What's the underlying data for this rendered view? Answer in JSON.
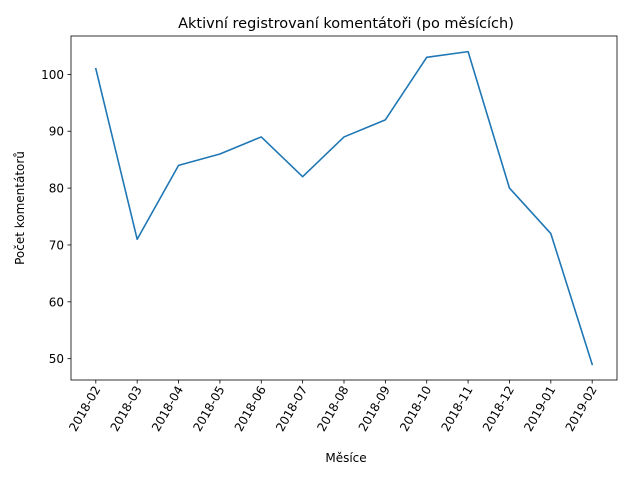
{
  "chart_data": {
    "type": "line",
    "title": "Aktivní registrovaní komentátoři (po měsících)",
    "xlabel": "Měsíce",
    "ylabel": "Počet komentátorů",
    "categories": [
      "2018-02",
      "2018-03",
      "2018-04",
      "2018-05",
      "2018-06",
      "2018-07",
      "2018-08",
      "2018-09",
      "2018-10",
      "2018-11",
      "2018-12",
      "2019-01",
      "2019-02"
    ],
    "series": [
      {
        "values": [
          101,
          71,
          84,
          86,
          89,
          82,
          89,
          92,
          103,
          104,
          80,
          72,
          49
        ]
      }
    ],
    "ylim": [
      46.25,
      106.75
    ],
    "yticks": [
      50,
      60,
      70,
      80,
      90,
      100
    ],
    "grid": false,
    "line_color": "#1f77b4"
  }
}
